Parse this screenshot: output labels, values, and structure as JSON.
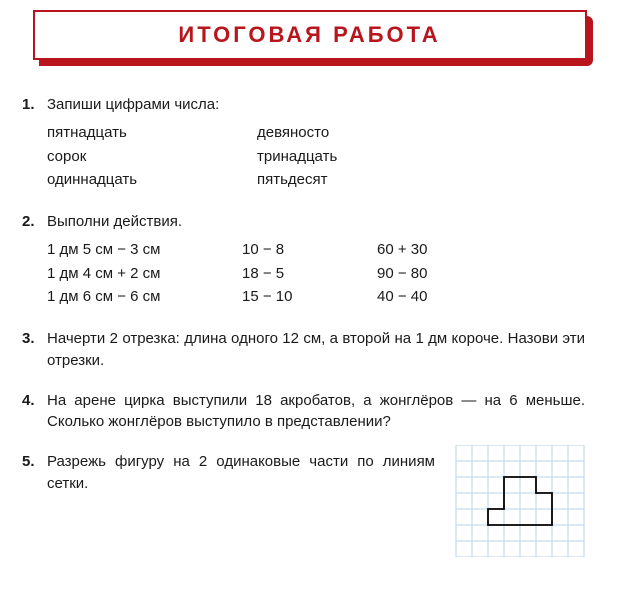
{
  "colors": {
    "accent": "#b8151c",
    "text": "#1a1a1a",
    "bg": "#ffffff",
    "grid": "#b8d4f0",
    "shape_stroke": "#000000"
  },
  "header": {
    "title": "ИТОГОВАЯ  РАБОТА"
  },
  "tasks": [
    {
      "num": "1.",
      "prompt": "Запиши цифрами числа:",
      "col1": [
        "пятнадцать",
        "сорок",
        "одиннадцать"
      ],
      "col2": [
        "девяносто",
        "тринадцать",
        "пятьдесят"
      ]
    },
    {
      "num": "2.",
      "prompt": "Выполни действия.",
      "colA": [
        "1 дм 5 см − 3 см",
        "1 дм 4 см + 2 см",
        "1 дм 6 см − 6 см"
      ],
      "colB": [
        "10 − 8",
        "18 − 5",
        "15 − 10"
      ],
      "colC": [
        "60 + 30",
        "90 − 80",
        "40 − 40"
      ]
    },
    {
      "num": "3.",
      "text": "Начерти 2 отрезка: длина одного 12 см, а второй на 1 дм короче. Назови эти отрезки."
    },
    {
      "num": "4.",
      "text": "На арене цирка выступили 18 акробатов, а жонглёров — на 6 меньше. Сколько жонглёров выступило в представлении?"
    },
    {
      "num": "5.",
      "text": "Разрежь фигуру на 2 одинаковые части по линиям сетки.",
      "figure": {
        "type": "grid-polygon",
        "grid_cell": 16,
        "grid_cols": 8,
        "grid_rows": 7,
        "grid_color": "#b8d4f0",
        "shape_stroke": "#000000",
        "shape_stroke_width": 1.8,
        "polygon_points": [
          [
            3,
            2
          ],
          [
            5,
            2
          ],
          [
            5,
            3
          ],
          [
            6,
            3
          ],
          [
            6,
            5
          ],
          [
            2,
            5
          ],
          [
            2,
            4
          ],
          [
            3,
            4
          ]
        ]
      }
    }
  ]
}
